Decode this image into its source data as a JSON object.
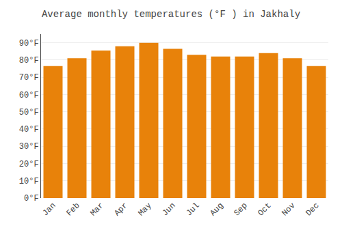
{
  "chart_data": {
    "type": "bar",
    "title": "Average monthly temperatures (°F ) in Jakhaly",
    "categories": [
      "Jan",
      "Feb",
      "Mar",
      "Apr",
      "May",
      "Jun",
      "Jul",
      "Aug",
      "Sep",
      "Oct",
      "Nov",
      "Dec"
    ],
    "values": [
      76.5,
      81.0,
      85.5,
      88.0,
      90.0,
      86.5,
      83.0,
      82.0,
      82.0,
      84.0,
      81.0,
      76.5
    ],
    "color": "#E8820A",
    "ylim": [
      0,
      95
    ],
    "yticks": [
      {
        "value": 0,
        "label": "0°F"
      },
      {
        "value": 10,
        "label": "10°F"
      },
      {
        "value": 20,
        "label": "20°F"
      },
      {
        "value": 30,
        "label": "30°F"
      },
      {
        "value": 40,
        "label": "40°F"
      },
      {
        "value": 50,
        "label": "50°F"
      },
      {
        "value": 60,
        "label": "60°F"
      },
      {
        "value": 70,
        "label": "70°F"
      },
      {
        "value": 80,
        "label": "80°F"
      },
      {
        "value": 90,
        "label": "90°F"
      }
    ],
    "grid": true
  }
}
